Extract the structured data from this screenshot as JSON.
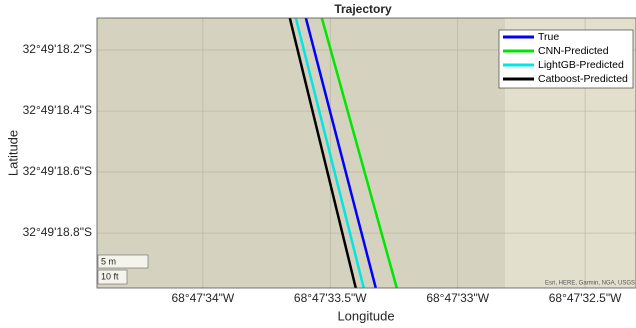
{
  "chart_data": {
    "type": "line",
    "title": "Trajectory",
    "xlabel": "Longitude",
    "ylabel": "Latitude",
    "xlim": [
      -68.7928932,
      -68.7923056
    ],
    "ylim": [
      -32.8219389,
      -32.8216931
    ],
    "xticks": [
      {
        "value": -68.7927778,
        "label": "68°47'34\"W"
      },
      {
        "value": -68.7926389,
        "label": "68°47'33.5\"W"
      },
      {
        "value": -68.7925,
        "label": "68°47'33\"W"
      },
      {
        "value": -68.7923611,
        "label": "68°47'32.5\"W"
      }
    ],
    "yticks": [
      {
        "value": -32.8218889,
        "label": "32°49'18.8\"S"
      },
      {
        "value": -32.8218333,
        "label": "32°49'18.6\"S"
      },
      {
        "value": -32.8217778,
        "label": "32°49'18.4\"S"
      },
      {
        "value": -32.8217222,
        "label": "32°49'18.2\"S"
      }
    ],
    "grid": true,
    "legend": "upper right",
    "series": [
      {
        "name": "True",
        "color": "#0000ff",
        "x": [
          -68.7926655,
          -68.7925893
        ],
        "values": [
          -32.8216931,
          -32.8219389
        ]
      },
      {
        "name": "CNN-Predicted",
        "color": "#00e600",
        "x": [
          -68.7926481,
          -68.7925664
        ],
        "values": [
          -32.8216931,
          -32.8219389
        ]
      },
      {
        "name": "LightGB-Predicted",
        "color": "#00e5e5",
        "x": [
          -68.7926764,
          -68.7926024
        ],
        "values": [
          -32.8216931,
          -32.8219389
        ]
      },
      {
        "name": "Catboost-Predicted",
        "color": "#000000",
        "x": [
          -68.792683,
          -68.7926111
        ],
        "values": [
          -32.8216931,
          -32.8219389
        ]
      }
    ],
    "scalebar": [
      "5 m",
      "10 ft"
    ],
    "attribution": "Esri, HERE, Garmin, NGA, USGS"
  }
}
